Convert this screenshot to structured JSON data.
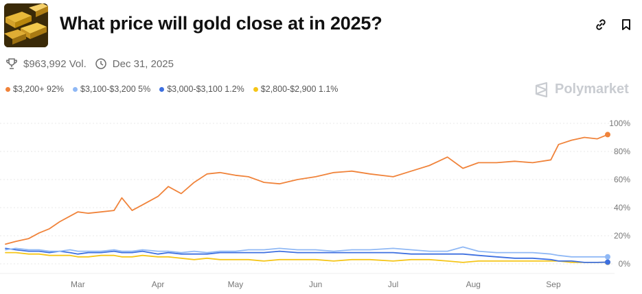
{
  "market": {
    "title": "What price will gold close at in 2025?",
    "volume": "$963,992 Vol.",
    "end_date": "Dec 31, 2025",
    "brand": "Polymarket"
  },
  "icons": {
    "link": "link-icon",
    "bookmark": "bookmark-icon",
    "trophy": "trophy-icon",
    "clock": "clock-icon",
    "brand": "polymarket-logo-icon"
  },
  "legend": [
    {
      "label": "$3,200+ 92%",
      "color": "#f0833a"
    },
    {
      "label": "$3,100-$3,200 5%",
      "color": "#8fb8f5"
    },
    {
      "label": "$3,000-$3,100 1.2%",
      "color": "#3d6fe0"
    },
    {
      "label": "$2,800-$2,900 1.1%",
      "color": "#f5c518"
    }
  ],
  "chart_data": {
    "type": "line",
    "x_ticks": [
      "Mar",
      "Apr",
      "May",
      "Jun",
      "Jul",
      "Aug",
      "Sep"
    ],
    "y_ticks": [
      "100%",
      "80%",
      "60%",
      "40%",
      "20%",
      "0%"
    ],
    "ylim": [
      0,
      100
    ],
    "grid": true,
    "x": [
      "2025-02-01",
      "2025-02-05",
      "2025-02-10",
      "2025-02-14",
      "2025-02-18",
      "2025-02-22",
      "2025-02-26",
      "2025-03-01",
      "2025-03-05",
      "2025-03-10",
      "2025-03-15",
      "2025-03-18",
      "2025-03-22",
      "2025-03-26",
      "2025-04-01",
      "2025-04-05",
      "2025-04-10",
      "2025-04-15",
      "2025-04-20",
      "2025-04-25",
      "2025-05-01",
      "2025-05-06",
      "2025-05-12",
      "2025-05-18",
      "2025-05-25",
      "2025-06-01",
      "2025-06-08",
      "2025-06-15",
      "2025-06-22",
      "2025-07-01",
      "2025-07-08",
      "2025-07-15",
      "2025-07-22",
      "2025-07-28",
      "2025-08-03",
      "2025-08-10",
      "2025-08-17",
      "2025-08-24",
      "2025-08-31",
      "2025-09-03",
      "2025-09-08",
      "2025-09-13",
      "2025-09-18",
      "2025-09-22"
    ],
    "series": [
      {
        "name": "$3,200+",
        "color": "#f0833a",
        "values": [
          14,
          16,
          18,
          22,
          25,
          30,
          34,
          37,
          36,
          37,
          38,
          47,
          38,
          42,
          48,
          55,
          50,
          58,
          64,
          65,
          63,
          62,
          58,
          57,
          60,
          62,
          65,
          66,
          64,
          62,
          66,
          70,
          76,
          68,
          72,
          72,
          73,
          72,
          74,
          85,
          88,
          90,
          89,
          92
        ]
      },
      {
        "name": "$3,100-$3,200",
        "color": "#8fb8f5",
        "values": [
          10,
          11,
          10,
          10,
          9,
          9,
          10,
          9,
          9,
          9,
          10,
          9,
          9,
          10,
          9,
          9,
          8,
          9,
          8,
          9,
          9,
          10,
          10,
          11,
          10,
          10,
          9,
          10,
          10,
          11,
          10,
          9,
          9,
          12,
          9,
          8,
          8,
          8,
          7,
          6,
          5,
          5,
          5,
          5
        ]
      },
      {
        "name": "$3,000-$3,100",
        "color": "#3d6fe0",
        "values": [
          11,
          10,
          9,
          9,
          8,
          9,
          8,
          7,
          8,
          8,
          9,
          8,
          8,
          9,
          7,
          8,
          7,
          7,
          7,
          8,
          8,
          8,
          8,
          9,
          8,
          8,
          8,
          8,
          8,
          8,
          7,
          7,
          7,
          7,
          6,
          5,
          4,
          4,
          3,
          2,
          2,
          1,
          1,
          1.2
        ]
      },
      {
        "name": "$2,800-$2,900",
        "color": "#f5c518",
        "values": [
          8,
          8,
          7,
          7,
          6,
          6,
          6,
          5,
          5,
          6,
          6,
          5,
          5,
          6,
          5,
          5,
          4,
          3,
          4,
          3,
          3,
          3,
          2,
          3,
          3,
          3,
          2,
          3,
          3,
          2,
          3,
          3,
          2,
          1,
          2,
          2,
          2,
          2,
          2,
          2,
          1,
          1,
          1,
          1.1
        ]
      }
    ]
  }
}
